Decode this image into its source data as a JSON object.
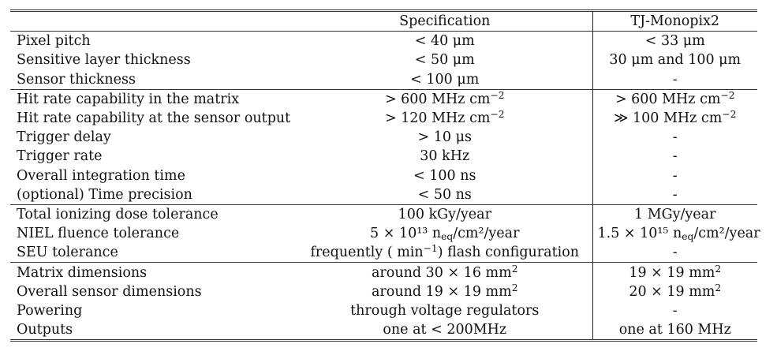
{
  "table": {
    "headers": [
      "",
      "Specification",
      "TJ-Monopix2"
    ],
    "groups": [
      {
        "rows": [
          {
            "name": "Pixel pitch",
            "spec": "< 40 μm",
            "tj": "< 33 μm"
          },
          {
            "name": "Sensitive layer thickness",
            "spec": "< 50 μm",
            "tj": "30 μm and 100 μm"
          },
          {
            "name": "Sensor thickness",
            "spec": "< 100 μm",
            "tj": "-"
          }
        ]
      },
      {
        "rows": [
          {
            "name": "Hit rate capability in the matrix",
            "spec": "> 600 MHz cm",
            "spec_sup": "−2",
            "tj": "> 600 MHz cm",
            "tj_sup": "−2"
          },
          {
            "name": "Hit rate capability at the sensor output",
            "spec": "> 120 MHz cm",
            "spec_sup": "−2",
            "tj": "≫ 100 MHz cm",
            "tj_sup": "−2"
          },
          {
            "name": "Trigger delay",
            "spec": "> 10 μs",
            "tj": "-"
          },
          {
            "name": "Trigger rate",
            "spec": "30 kHz",
            "tj": "-"
          },
          {
            "name": "Overall integration time",
            "spec": "< 100 ns",
            "tj": "-"
          },
          {
            "name": "(optional) Time precision",
            "spec": "< 50 ns",
            "tj": "-"
          }
        ]
      },
      {
        "rows": [
          {
            "name": "Total ionizing dose tolerance",
            "spec": "100 kGy/year",
            "tj": "1 MGy/year"
          },
          {
            "name": "NIEL fluence tolerance",
            "spec": "5 × 10¹³ n",
            "spec_sub": "eq",
            "spec_tail": "/cm²/year",
            "tj": "1.5 × 10¹⁵ n",
            "tj_sub": "eq",
            "tj_tail": "/cm²/year"
          },
          {
            "name": "SEU tolerance",
            "spec": "frequently ( min",
            "spec_sup": "−1",
            "spec_tail": ") flash configuration",
            "tj": "-"
          }
        ]
      },
      {
        "rows": [
          {
            "name": "Matrix dimensions",
            "spec": "around 30 × 16 mm",
            "spec_sup": "2",
            "tj": "19 × 19 mm",
            "tj_sup": "2"
          },
          {
            "name": "Overall sensor dimensions",
            "spec": "around 19 × 19 mm",
            "spec_sup": "2",
            "tj": "20 × 19 mm",
            "tj_sup": "2"
          },
          {
            "name": "Powering",
            "spec": "through voltage regulators",
            "tj": "-"
          },
          {
            "name": "Outputs",
            "spec": "one at < 200MHz",
            "tj": "one at 160 MHz"
          }
        ]
      }
    ]
  }
}
